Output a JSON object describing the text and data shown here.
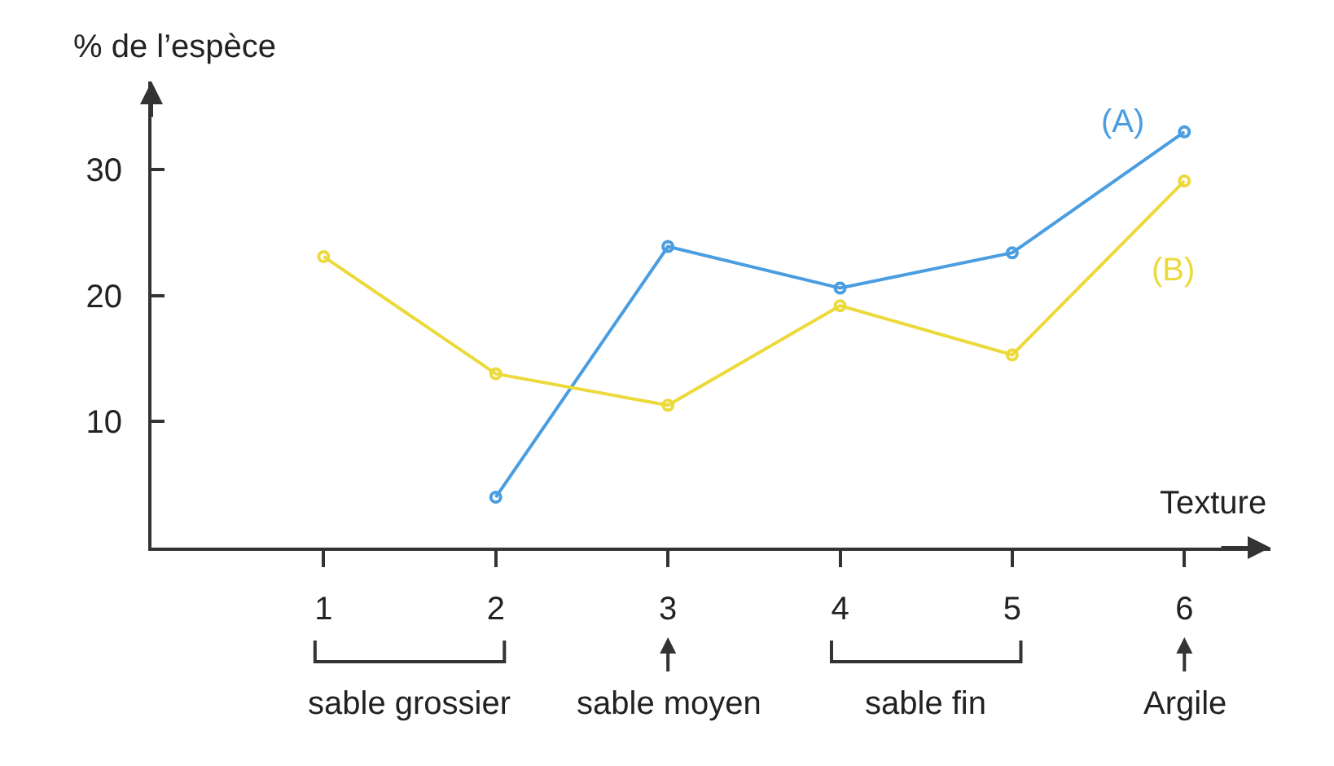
{
  "chart_data": {
    "type": "line",
    "xlabel": "Texture",
    "ylabel": "% de l’espèce",
    "x": [
      1,
      2,
      3,
      4,
      5,
      6
    ],
    "series": [
      {
        "name": "(A)",
        "color": "#4a9de0",
        "values": [
          null,
          4,
          23.9,
          20.6,
          23.4,
          33
        ]
      },
      {
        "name": "(B)",
        "color": "#ecd93a",
        "values": [
          23.1,
          13.8,
          11.3,
          19.2,
          15.3,
          29.1
        ]
      }
    ],
    "xlim": [
      0,
      6.5
    ],
    "xticks": [
      1,
      2,
      3,
      4,
      5,
      6
    ],
    "ylim": [
      0,
      37
    ],
    "yticks": [
      10,
      20,
      30
    ],
    "grid": false,
    "legend": false,
    "marker": "circle",
    "line_style": "solid",
    "annotations": [
      "sable grossier",
      "sable moyen",
      "sable fin",
      "Argile"
    ]
  }
}
